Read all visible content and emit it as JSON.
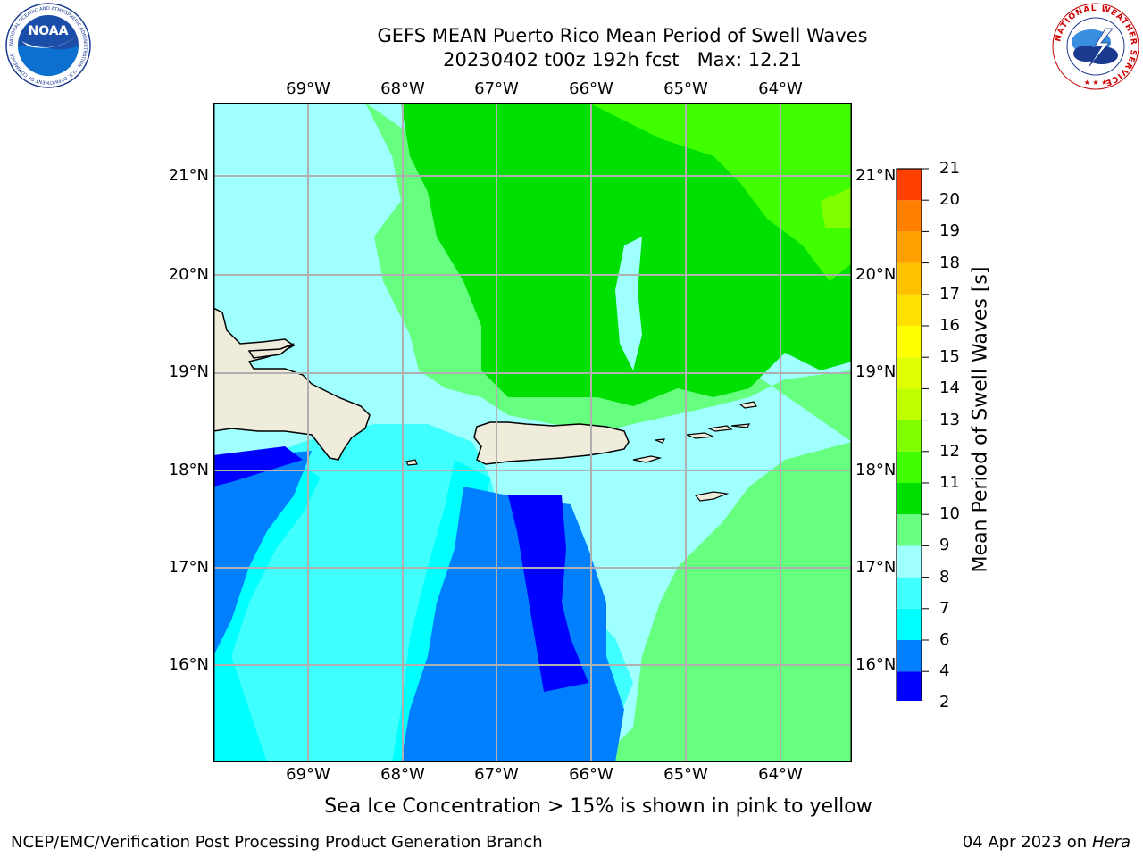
{
  "title": {
    "line1": "GEFS MEAN Puerto Rico Mean Period of Swell Waves",
    "line2": "20230402 t00z 192h fcst   Max: 12.21"
  },
  "map": {
    "lon_labels": [
      "69°W",
      "68°W",
      "67°W",
      "66°W",
      "65°W",
      "64°W"
    ],
    "lat_labels": [
      "21°N",
      "20°N",
      "19°N",
      "18°N",
      "17°N",
      "16°N"
    ],
    "land_color": "#efecdc",
    "outline_color": "#000000",
    "grid_color": "#b0b0b0"
  },
  "colorbar": {
    "label": "Mean Period of Swell Waves [s]",
    "ticks": [
      "2",
      "4",
      "6",
      "7",
      "8",
      "9",
      "10",
      "11",
      "12",
      "13",
      "14",
      "15",
      "16",
      "17",
      "18",
      "19",
      "20",
      "21"
    ],
    "colors": [
      "#0000ff",
      "#0080ff",
      "#00ffff",
      "#40ffff",
      "#a0ffff",
      "#66ff80",
      "#00e000",
      "#40ff00",
      "#80ff00",
      "#c0ff00",
      "#e0ff00",
      "#ffff00",
      "#ffe000",
      "#ffc000",
      "#ffa000",
      "#ff8000",
      "#ff4000",
      "#ff0000"
    ],
    "under_color": "#0000ff"
  },
  "sea_ice_note": "Sea Ice Concentration > 15% is shown in pink to yellow",
  "footer": {
    "left": "NCEP/EMC/Verification Post Processing Product Generation Branch",
    "right_date": "04 Apr 2023 on ",
    "right_host": "Hera"
  },
  "logos": {
    "noaa_text": "NOAA",
    "noaa_ring": "NATIONAL OCEANIC AND ATMOSPHERIC ADMINISTRATION · U.S. DEPARTMENT OF COMMERCE",
    "nws_ring": "NATIONAL WEATHER SERVICE"
  }
}
